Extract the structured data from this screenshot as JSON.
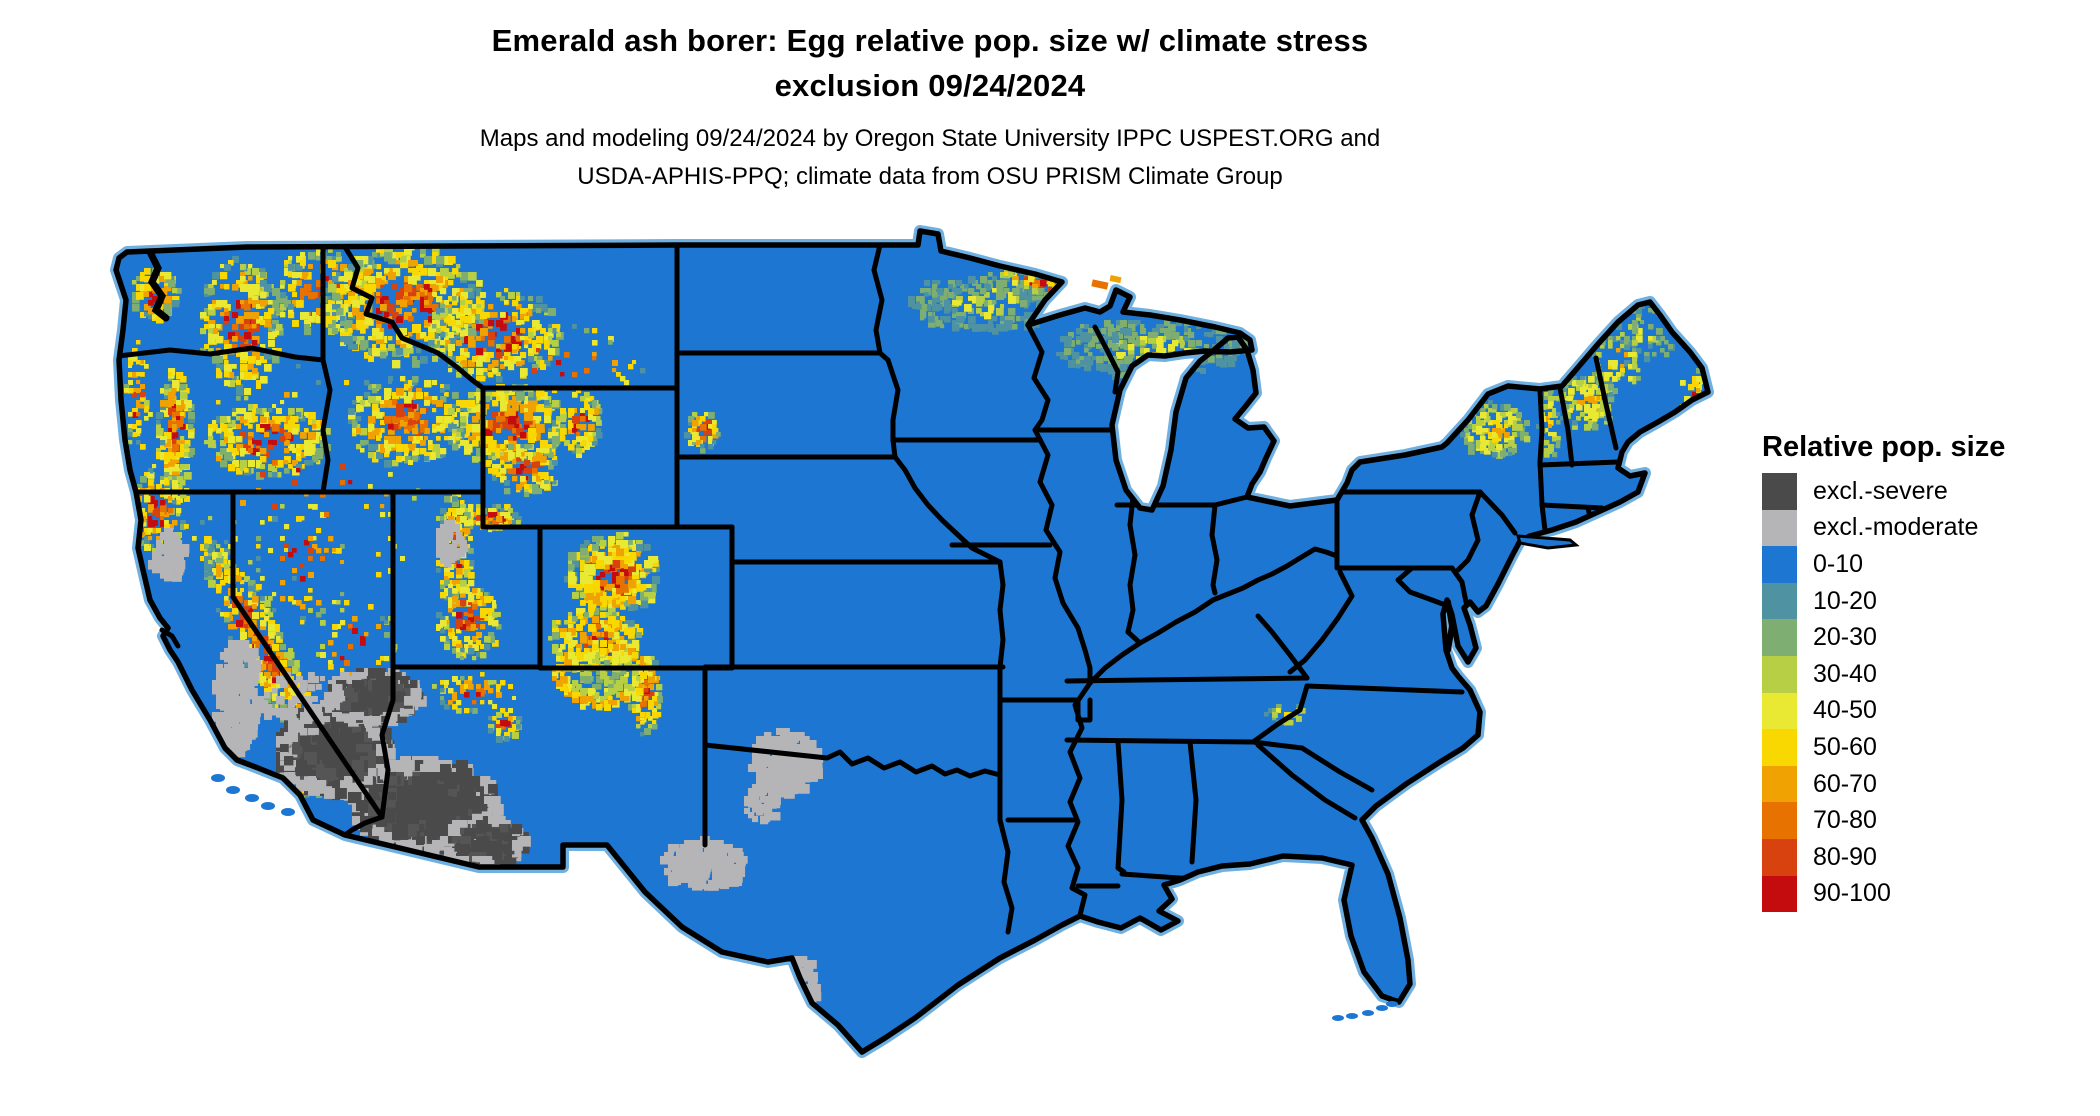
{
  "header": {
    "title_line1": "Emerald ash borer: Egg relative pop. size w/ climate stress",
    "title_line2": "exclusion 09/24/2024",
    "subtitle_line1": "Maps and modeling 09/24/2024 by Oregon State University IPPC USPEST.ORG and",
    "subtitle_line2": "USDA-APHIS-PPQ; climate data from OSU PRISM Climate Group"
  },
  "legend": {
    "title": "Relative pop. size",
    "items": [
      {
        "label": "excl.-severe",
        "color": "#4a4a4a"
      },
      {
        "label": "excl.-moderate",
        "color": "#b5b5b7"
      },
      {
        "label": "0-10",
        "color": "#1d76d2"
      },
      {
        "label": "10-20",
        "color": "#4f93a2"
      },
      {
        "label": "20-30",
        "color": "#7fae72"
      },
      {
        "label": "30-40",
        "color": "#b6cf45"
      },
      {
        "label": "40-50",
        "color": "#e9e832"
      },
      {
        "label": "50-60",
        "color": "#f8d800"
      },
      {
        "label": "60-70",
        "color": "#f0a202"
      },
      {
        "label": "70-80",
        "color": "#e87200"
      },
      {
        "label": "80-90",
        "color": "#d8420e"
      },
      {
        "label": "90-100",
        "color": "#c40b0d"
      }
    ]
  },
  "map": {
    "region": "Contiguous United States",
    "base_color": "#1d76d2",
    "border_color": "#000000",
    "background_color": "#ffffff",
    "coast_halo_color": "#6fb0e2"
  }
}
